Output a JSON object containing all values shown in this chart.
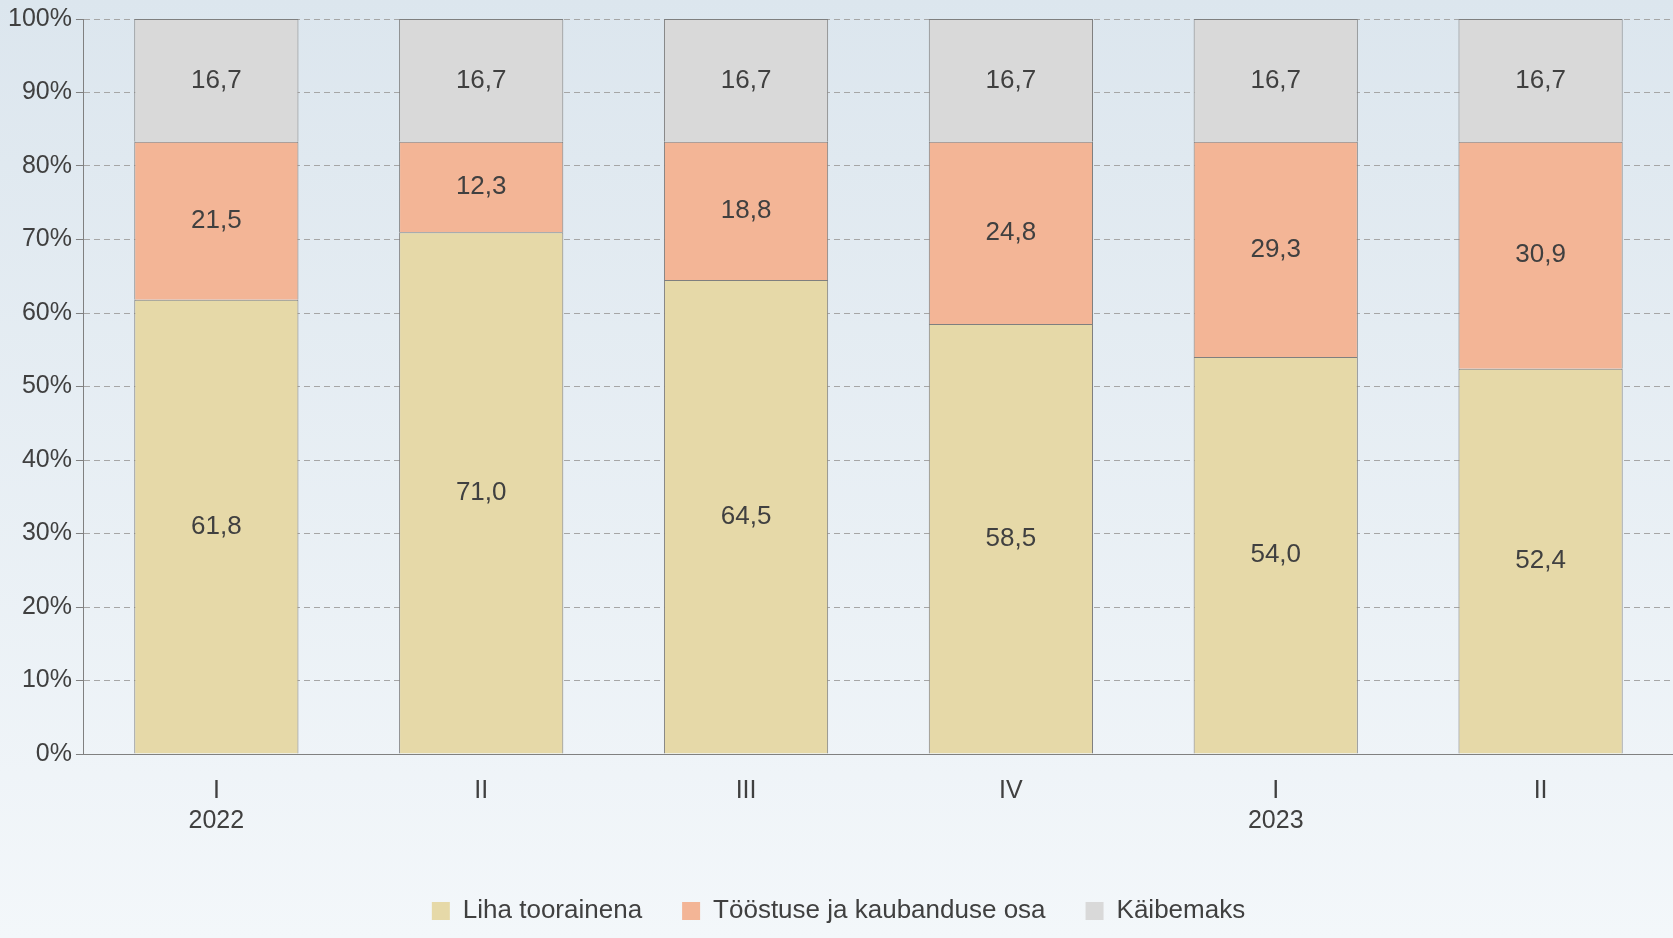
{
  "chart_data": {
    "type": "bar",
    "stacked": true,
    "categories": [
      "I\n2022",
      "II",
      "III",
      "IV",
      "I\n2023",
      "II"
    ],
    "series": [
      {
        "name": "Liha toorainena",
        "color": "#e6d9a8",
        "values": [
          61.8,
          71.0,
          64.5,
          58.5,
          54.0,
          52.4
        ],
        "value_labels": [
          "61,8",
          "71,0",
          "64,5",
          "58,5",
          "54,0",
          "52,4"
        ]
      },
      {
        "name": "Tööstuse ja kaubanduse osa",
        "color": "#f3b596",
        "values": [
          21.5,
          12.3,
          18.8,
          24.8,
          29.3,
          30.9
        ],
        "value_labels": [
          "21,5",
          "12,3",
          "18,8",
          "24,8",
          "29,3",
          "30,9"
        ]
      },
      {
        "name": "Käibemaks",
        "color": "#d9d9d9",
        "values": [
          16.7,
          16.7,
          16.7,
          16.7,
          16.7,
          16.7
        ],
        "value_labels": [
          "16,7",
          "16,7",
          "16,7",
          "16,7",
          "16,7",
          "16,7"
        ]
      }
    ],
    "ylim": [
      0,
      100
    ],
    "yticks": [
      {
        "value": 0,
        "label": "0%"
      },
      {
        "value": 10,
        "label": "10%"
      },
      {
        "value": 20,
        "label": "20%"
      },
      {
        "value": 30,
        "label": "30%"
      },
      {
        "value": 40,
        "label": "40%"
      },
      {
        "value": 50,
        "label": "50%"
      },
      {
        "value": 60,
        "label": "60%"
      },
      {
        "value": 70,
        "label": "70%"
      },
      {
        "value": 80,
        "label": "80%"
      },
      {
        "value": 90,
        "label": "90%"
      },
      {
        "value": 100,
        "label": "100%"
      }
    ],
    "grid": "y",
    "legend": "bottom"
  }
}
